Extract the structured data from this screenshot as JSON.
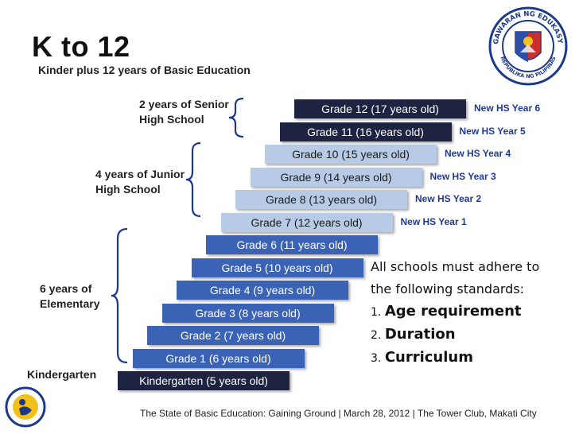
{
  "header": {
    "title": "K to 12",
    "subtitle": "Kinder plus 12 years of Basic Education"
  },
  "grades": [
    {
      "label": "Kindergarten (5 years old)",
      "new_hs": ""
    },
    {
      "label": "Grade 1 (6 years old)",
      "new_hs": ""
    },
    {
      "label": "Grade 2 (7 years old)",
      "new_hs": ""
    },
    {
      "label": "Grade 3 (8 years old)",
      "new_hs": ""
    },
    {
      "label": "Grade 4 (9 years old)",
      "new_hs": ""
    },
    {
      "label": "Grade 5 (10 years old)",
      "new_hs": ""
    },
    {
      "label": "Grade 6 (11 years old)",
      "new_hs": ""
    },
    {
      "label": "Grade 7 (12 years old)",
      "new_hs": "New HS Year 1"
    },
    {
      "label": "Grade 8 (13 years old)",
      "new_hs": "New HS Year 2"
    },
    {
      "label": "Grade 9 (14 years old)",
      "new_hs": "New HS Year 3"
    },
    {
      "label": "Grade 10 (15 years old)",
      "new_hs": "New HS Year 4"
    },
    {
      "label": "Grade 11 (16 years old)",
      "new_hs": "New HS Year 5"
    },
    {
      "label": "Grade 12 (17 years old)",
      "new_hs": "New HS Year 6"
    }
  ],
  "groups": {
    "kindergarten": "Kindergarten",
    "elementary_1": "6 years of",
    "elementary_2": "Elementary",
    "junior_1": "4 years of Junior",
    "junior_2": "High School",
    "senior_1": "2 years of Senior",
    "senior_2": "High School"
  },
  "standards": {
    "intro_1": "All schools must adhere to",
    "intro_2": "the following standards:",
    "items": [
      {
        "num": "1.",
        "text": "Age requirement"
      },
      {
        "num": "2.",
        "text": "Duration"
      },
      {
        "num": "3.",
        "text": "Curriculum"
      }
    ]
  },
  "footer": "The State of Basic Education: Gaining Ground | March 28, 2012 | The Tower Club, Makati City",
  "seal": {
    "ring_top": "KAGAWARAN NG EDUKASYON",
    "ring_bottom": "REPUBLIKA NG PILIPINAS"
  },
  "colors": {
    "kindergarten": "#1d2340",
    "elementary": "#3b63b5",
    "junior": "#b8cbe6",
    "senior": "#1d2340",
    "tag": "#1f3a93"
  }
}
